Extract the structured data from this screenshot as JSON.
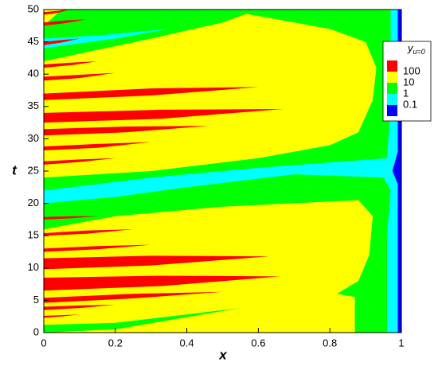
{
  "chart_data": {
    "type": "contour",
    "xlabel": "x",
    "ylabel": "t",
    "xlim": [
      0,
      1
    ],
    "ylim": [
      0,
      50
    ],
    "xticks": [
      0,
      0.2,
      0.4,
      0.6,
      0.8,
      1
    ],
    "yticks": [
      0,
      5,
      10,
      15,
      20,
      25,
      30,
      35,
      40,
      45,
      50
    ],
    "legend": {
      "title": "y",
      "title_subscript": "u=0",
      "labels": [
        100,
        10,
        1,
        0.1
      ],
      "colors": [
        "#ff0000",
        "#ffff00",
        "#00ff00",
        "#00ffff",
        "#0000ff"
      ]
    },
    "regions": [
      {
        "level": 1,
        "x": [
          0,
          1,
          1,
          0
        ],
        "t": [
          0,
          0,
          50,
          50
        ]
      },
      {
        "level": 2,
        "x": [
          0.87,
          0.87,
          0.82,
          0.88,
          0.91,
          0.92,
          0.88,
          0.5,
          0.2,
          0,
          0,
          0.3,
          0.6,
          0.8,
          0.88,
          0.92,
          0.93,
          0.9,
          0.8,
          0.6,
          0.5,
          1,
          1
        ],
        "t": [
          0,
          5.5,
          6,
          8,
          12,
          18,
          20.5,
          19.5,
          18,
          16,
          24,
          25,
          27,
          29,
          31,
          36,
          41,
          45,
          47,
          49,
          50,
          50,
          0
        ]
      },
      {
        "level": 2,
        "x": [
          0,
          0.3,
          0.5,
          0.6,
          0.05,
          0
        ],
        "t": [
          42,
          45.5,
          48,
          50,
          50,
          47.5
        ]
      },
      {
        "level": 2,
        "x": [
          0,
          0.2,
          0.55,
          0.2,
          0
        ],
        "t": [
          0,
          0.5,
          3.8,
          1.5,
          1.2
        ]
      },
      {
        "level": 3,
        "x": [
          0.96,
          0.96,
          0.97,
          0.95,
          0.7,
          0.4,
          0.2,
          0,
          0,
          0.3,
          0.6,
          0.96,
          0.97,
          0.97,
          0.99,
          0.99
        ],
        "t": [
          0,
          15,
          22,
          24,
          24.5,
          22.5,
          21,
          20,
          22,
          24,
          25.5,
          27,
          35,
          50,
          50,
          0
        ]
      },
      {
        "level": 3,
        "x": [
          0,
          0.2,
          0.35,
          0.15,
          0
        ],
        "t": [
          44,
          45.5,
          47,
          46,
          45.5
        ]
      },
      {
        "level": 4,
        "x": [
          0.99,
          0.99,
          0.975,
          0.99,
          0.99,
          1,
          1
        ],
        "t": [
          0,
          23,
          25,
          28,
          50,
          50,
          0
        ]
      },
      {
        "level": 0,
        "x": [
          0,
          0.3,
          0.63,
          0.3,
          0
        ],
        "t": [
          9.8,
          10.4,
          11.8,
          11.9,
          11.5
        ]
      },
      {
        "level": 0,
        "x": [
          0,
          0.33,
          0.66,
          0.33,
          0
        ],
        "t": [
          6.5,
          7.2,
          8.7,
          8.8,
          8.5
        ]
      },
      {
        "level": 0,
        "x": [
          0,
          0.33,
          0.67,
          0.33,
          0
        ],
        "t": [
          32.5,
          33.1,
          34.6,
          34.5,
          34
        ]
      },
      {
        "level": 0,
        "x": [
          0,
          0.3,
          0.6,
          0.3,
          0
        ],
        "t": [
          36,
          36.7,
          38,
          37.8,
          37
        ]
      },
      {
        "level": 0,
        "x": [
          0,
          0.23,
          0.46,
          0.23,
          0
        ],
        "t": [
          30.5,
          31,
          32,
          31.9,
          31.5
        ]
      },
      {
        "level": 0,
        "x": [
          0,
          0.25,
          0.5,
          0.25,
          0
        ],
        "t": [
          4.6,
          5.3,
          6.3,
          6,
          5.4
        ]
      },
      {
        "level": 0,
        "x": [
          0,
          0.15,
          0.3,
          0.15,
          0
        ],
        "t": [
          12.5,
          12.9,
          13.6,
          13.4,
          13
        ]
      },
      {
        "level": 0,
        "x": [
          0,
          0.1,
          0.2,
          0.1,
          0
        ],
        "t": [
          3.5,
          3.8,
          4.3,
          4.2,
          4
        ]
      },
      {
        "level": 0,
        "x": [
          0,
          0.15,
          0.3,
          0.15,
          0
        ],
        "t": [
          28.2,
          28.6,
          29.5,
          29.2,
          28.8
        ]
      },
      {
        "level": 0,
        "x": [
          0,
          0.1,
          0.2,
          0.1,
          0
        ],
        "t": [
          26,
          26.4,
          27,
          26.8,
          26.5
        ]
      },
      {
        "level": 0,
        "x": [
          0,
          0.1,
          0.2,
          0.1,
          0
        ],
        "t": [
          39,
          39.4,
          40.2,
          39.9,
          39.6
        ]
      },
      {
        "level": 0,
        "x": [
          0,
          0.08,
          0.15,
          0.08,
          0
        ],
        "t": [
          41,
          41.4,
          42,
          41.8,
          41.5
        ]
      },
      {
        "level": 0,
        "x": [
          0,
          0.06,
          0.12,
          0.06,
          0
        ],
        "t": [
          47.5,
          47.9,
          48.5,
          48.3,
          48
        ]
      },
      {
        "level": 0,
        "x": [
          0,
          0.12,
          0.25,
          0.12,
          0
        ],
        "t": [
          15,
          15.3,
          16,
          15.8,
          15.4
        ]
      },
      {
        "level": 0,
        "x": [
          0,
          0.08,
          0.15,
          0.08,
          0
        ],
        "t": [
          17.5,
          17.7,
          18,
          18,
          17.9
        ]
      },
      {
        "level": 0,
        "x": [
          0,
          0.05,
          0.1,
          0.05,
          0
        ],
        "t": [
          2.3,
          2.5,
          2.8,
          2.7,
          2.6
        ]
      },
      {
        "level": 0,
        "x": [
          0,
          0.05,
          0.1,
          0.05,
          0
        ],
        "t": [
          44.5,
          44.9,
          45.5,
          45.3,
          45
        ]
      },
      {
        "level": 0,
        "x": [
          0,
          0.04,
          0.07,
          0.04,
          0
        ],
        "t": [
          49.2,
          49.5,
          50,
          49.8,
          49.6
        ]
      }
    ]
  }
}
